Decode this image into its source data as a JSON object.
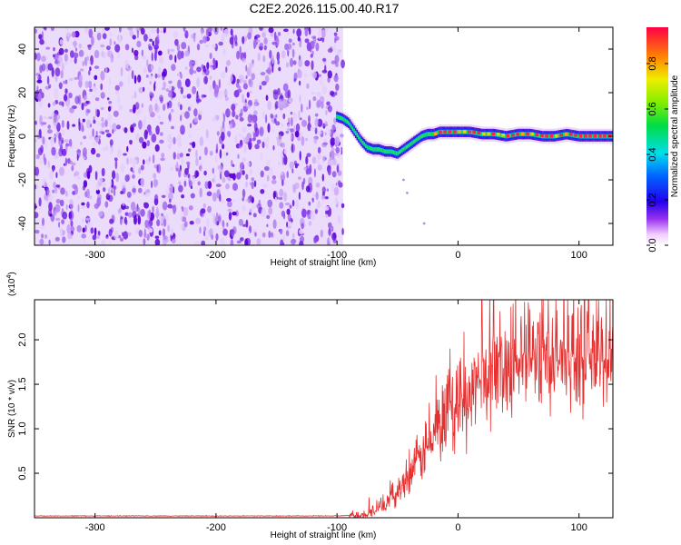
{
  "title": "C2E2.2026.115.00.40.R17",
  "chart_data": [
    {
      "type": "heatmap",
      "xlabel": "Height of straight line (km)",
      "ylabel": "Frequency (Hz)",
      "xlim": [
        -350,
        128
      ],
      "ylim": [
        -50,
        50
      ],
      "xticks": [
        -300,
        -200,
        -100,
        0,
        100
      ],
      "yticks": [
        -40,
        -20,
        0,
        20,
        40
      ],
      "noise_region": [
        -350,
        -95
      ],
      "signal_track": {
        "x": [
          -100,
          -95,
          -90,
          -85,
          -80,
          -75,
          -70,
          -65,
          -60,
          -55,
          -50,
          -45,
          -40,
          -35,
          -30,
          -25,
          -20,
          -15,
          -10,
          -5,
          0,
          10,
          20,
          30,
          40,
          50,
          60,
          70,
          80,
          90,
          100,
          110,
          120,
          128
        ],
        "y": [
          9,
          8,
          6,
          2,
          -2,
          -5,
          -6,
          -6,
          -7,
          -7,
          -8,
          -6,
          -4,
          -2,
          0,
          1,
          1,
          2,
          2,
          2,
          2,
          2,
          1,
          1,
          0,
          1,
          1,
          0,
          0,
          1,
          0,
          0,
          0,
          0
        ]
      },
      "colorbar": {
        "label": "Normalized spectral amplitude",
        "ticks": [
          0.0,
          0.2,
          0.4,
          0.6,
          0.8
        ],
        "range": [
          0,
          0.96
        ]
      }
    },
    {
      "type": "line",
      "xlabel": "Height of straight line (km)",
      "ylabel": "SNR (10 * v/v)",
      "multiplier_label": "(x10",
      "multiplier_exp": "4",
      "multiplier_close": ")",
      "xlim": [
        -350,
        128
      ],
      "ylim": [
        0,
        2.45
      ],
      "xticks": [
        -300,
        -200,
        -100,
        0,
        100
      ],
      "yticks": [
        0.5,
        1.0,
        1.5,
        2.0
      ],
      "ytick_labels": [
        "0.5",
        "1.0",
        "1.5",
        "2.0"
      ],
      "color": "#e53030",
      "envelope": {
        "x": [
          -350,
          -100,
          -80,
          -70,
          -60,
          -50,
          -40,
          -30,
          -20,
          -10,
          0,
          10,
          20,
          30,
          40,
          60,
          80,
          100,
          128
        ],
        "y": [
          0.02,
          0.02,
          0.03,
          0.08,
          0.15,
          0.3,
          0.5,
          0.7,
          0.88,
          1.05,
          1.2,
          1.4,
          1.55,
          1.65,
          1.72,
          1.8,
          1.82,
          1.8,
          1.78
        ]
      }
    }
  ]
}
